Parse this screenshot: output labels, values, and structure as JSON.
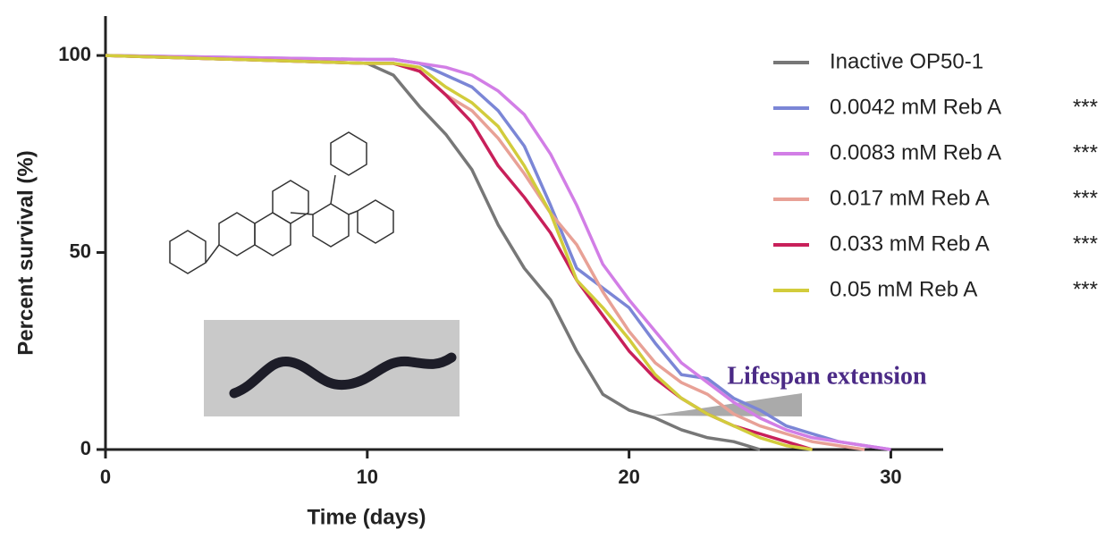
{
  "chart_data": {
    "type": "line",
    "x_label": "Time (days)",
    "y_label": "Percent survival (%)",
    "xlim": [
      0,
      32
    ],
    "xticks": [
      0,
      10,
      20,
      30
    ],
    "ylim": [
      0,
      110
    ],
    "yticks": [
      0,
      50,
      100
    ],
    "annotation": "Lifespan extension",
    "x": [
      0,
      10,
      11,
      12,
      13,
      14,
      15,
      16,
      17,
      18,
      19,
      20,
      21,
      22,
      23,
      24,
      25,
      26,
      27,
      28,
      29,
      30
    ],
    "series": [
      {
        "name": "Inactive OP50-1",
        "color": "#777777",
        "significance": null,
        "values": [
          100,
          98,
          95,
          87,
          80,
          71,
          57,
          46,
          38,
          25,
          14,
          10,
          8,
          5,
          3,
          2,
          0,
          null,
          null,
          null,
          null,
          null
        ]
      },
      {
        "name": "0.0042 mM Reb A",
        "color": "#7b86d6",
        "significance": "***",
        "values": [
          100,
          99,
          99,
          98,
          95,
          92,
          86,
          77,
          62,
          46,
          41,
          36,
          27,
          19,
          18,
          13,
          10,
          6,
          4,
          2,
          1,
          0
        ]
      },
      {
        "name": "0.0083 mM Reb A",
        "color": "#d27ee6",
        "significance": "***",
        "values": [
          100,
          99,
          99,
          98,
          97,
          95,
          91,
          85,
          75,
          62,
          47,
          38,
          30,
          22,
          17,
          12,
          8,
          5,
          3,
          2,
          1,
          0
        ]
      },
      {
        "name": "0.017 mM Reb A",
        "color": "#e8a196",
        "significance": "***",
        "values": [
          100,
          98,
          98,
          96,
          90,
          86,
          79,
          70,
          60,
          52,
          40,
          30,
          22,
          17,
          14,
          9,
          6,
          4,
          2,
          1,
          0,
          null
        ]
      },
      {
        "name": "0.033 mM Reb A",
        "color": "#c8205a",
        "significance": "***",
        "values": [
          100,
          98,
          98,
          96,
          90,
          83,
          72,
          64,
          55,
          43,
          34,
          25,
          18,
          13,
          9,
          6,
          4,
          2,
          0,
          null,
          null,
          null
        ]
      },
      {
        "name": "0.05 mM Reb A",
        "color": "#d2cc3c",
        "significance": "***",
        "values": [
          100,
          98,
          98,
          97,
          92,
          88,
          82,
          72,
          60,
          43,
          36,
          28,
          19,
          13,
          9,
          6,
          3,
          1,
          0,
          null,
          null,
          null
        ]
      }
    ]
  }
}
